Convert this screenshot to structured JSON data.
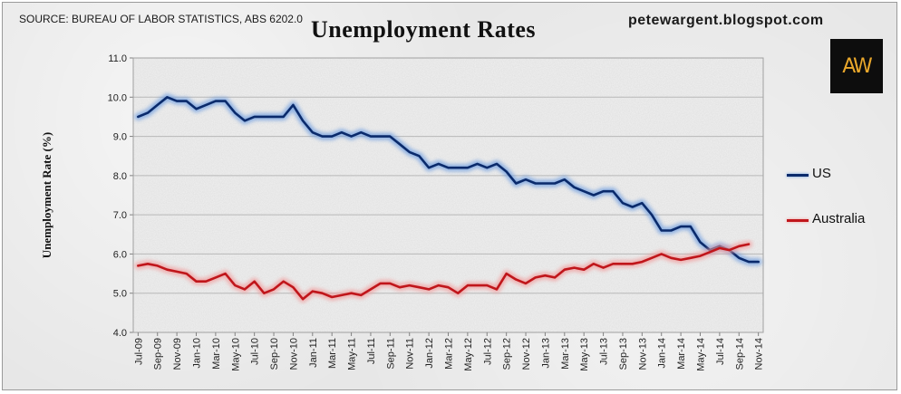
{
  "source_note": "SOURCE: BUREAU OF LABOR STATISTICS, ABS 6202.0",
  "blog": "petewargent.blogspot.com",
  "logo": "AW",
  "chart_data": {
    "type": "line",
    "title": "Unemployment Rates",
    "xlabel": "",
    "ylabel": "Unemployment Rate (%)",
    "ylim": [
      4.0,
      11.0
    ],
    "yticks": [
      "4.0",
      "5.0",
      "6.0",
      "7.0",
      "8.0",
      "9.0",
      "10.0",
      "11.0"
    ],
    "grid": true,
    "legend_position": "right",
    "xtick_labels": [
      "Jul-09",
      "Sep-09",
      "Nov-09",
      "Jan-10",
      "Mar-10",
      "May-10",
      "Jul-10",
      "Sep-10",
      "Nov-10",
      "Jan-11",
      "Mar-11",
      "May-11",
      "Jul-11",
      "Sep-11",
      "Nov-11",
      "Jan-12",
      "Mar-12",
      "May-12",
      "Jul-12",
      "Sep-12",
      "Nov-12",
      "Jan-13",
      "Mar-13",
      "May-13",
      "Jul-13",
      "Sep-13",
      "Nov-13",
      "Jan-14",
      "Mar-14",
      "May-14",
      "Jul-14",
      "Sep-14",
      "Nov-14"
    ],
    "series": [
      {
        "name": "US",
        "color": "#0a2a6b",
        "glow": "#6f9ee0",
        "values": [
          9.5,
          9.6,
          9.8,
          10.0,
          9.9,
          9.9,
          9.7,
          9.8,
          9.9,
          9.9,
          9.6,
          9.4,
          9.5,
          9.5,
          9.5,
          9.5,
          9.8,
          9.4,
          9.1,
          9.0,
          9.0,
          9.1,
          9.0,
          9.1,
          9.0,
          9.0,
          9.0,
          8.8,
          8.6,
          8.5,
          8.2,
          8.3,
          8.2,
          8.2,
          8.2,
          8.3,
          8.2,
          8.3,
          8.1,
          7.8,
          7.9,
          7.8,
          7.8,
          7.8,
          7.9,
          7.7,
          7.6,
          7.5,
          7.6,
          7.6,
          7.3,
          7.2,
          7.3,
          7.0,
          6.6,
          6.6,
          6.7,
          6.7,
          6.3,
          6.1,
          6.2,
          6.1,
          5.9,
          5.8,
          5.8
        ]
      },
      {
        "name": "Australia",
        "color": "#c0161b",
        "glow": "#f29b9b",
        "values": [
          5.7,
          5.75,
          5.7,
          5.6,
          5.55,
          5.5,
          5.3,
          5.3,
          5.4,
          5.5,
          5.2,
          5.1,
          5.3,
          5.0,
          5.1,
          5.3,
          5.15,
          4.85,
          5.05,
          5.0,
          4.9,
          4.95,
          5.0,
          4.95,
          5.1,
          5.25,
          5.25,
          5.15,
          5.2,
          5.15,
          5.1,
          5.2,
          5.15,
          5.0,
          5.2,
          5.2,
          5.2,
          5.1,
          5.5,
          5.35,
          5.25,
          5.4,
          5.45,
          5.4,
          5.6,
          5.65,
          5.6,
          5.75,
          5.65,
          5.75,
          5.75,
          5.75,
          5.8,
          5.9,
          6.0,
          5.9,
          5.85,
          5.9,
          5.95,
          6.05,
          6.15,
          6.1,
          6.2,
          6.25
        ]
      }
    ]
  }
}
